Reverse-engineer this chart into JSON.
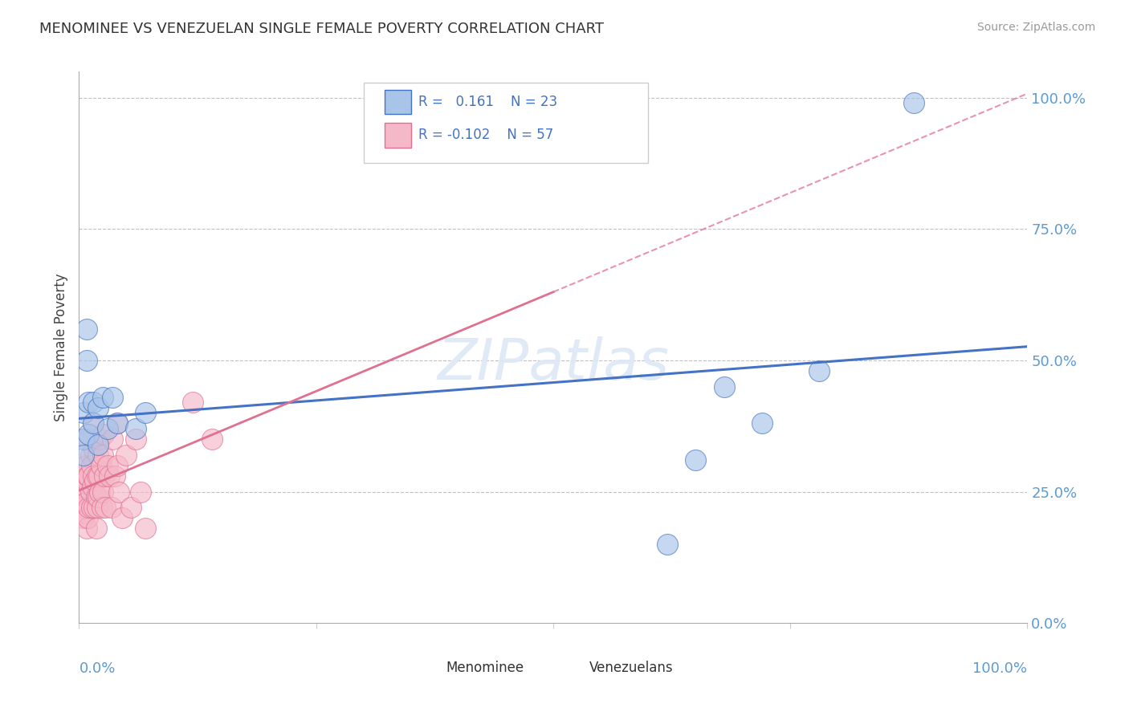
{
  "title": "MENOMINEE VS VENEZUELAN SINGLE FEMALE POVERTY CORRELATION CHART",
  "source": "Source: ZipAtlas.com",
  "ylabel": "Single Female Poverty",
  "menominee_R": "0.161",
  "menominee_N": "23",
  "venezuelan_R": "-0.102",
  "venezuelan_N": "57",
  "menominee_color": "#a8c4e8",
  "venezuelan_color": "#f5b8c8",
  "menominee_line_color": "#4472c4",
  "venezuelan_line_color": "#e07090",
  "background_color": "#ffffff",
  "watermark_color": "#dde8f5",
  "ytick_labels": [
    "0.0%",
    "25.0%",
    "50.0%",
    "75.0%",
    "100.0%"
  ],
  "ytick_values": [
    0.0,
    0.25,
    0.5,
    0.75,
    1.0
  ],
  "menominee_x": [
    0.005,
    0.005,
    0.005,
    0.008,
    0.008,
    0.01,
    0.01,
    0.015,
    0.015,
    0.02,
    0.02,
    0.025,
    0.03,
    0.035,
    0.04,
    0.06,
    0.07,
    0.62,
    0.65,
    0.68,
    0.72,
    0.78,
    0.88
  ],
  "menominee_y": [
    0.4,
    0.35,
    0.32,
    0.56,
    0.5,
    0.42,
    0.36,
    0.42,
    0.38,
    0.41,
    0.34,
    0.43,
    0.37,
    0.43,
    0.38,
    0.37,
    0.4,
    0.15,
    0.31,
    0.45,
    0.38,
    0.48,
    0.99
  ],
  "venezuelan_x": [
    0.003,
    0.004,
    0.005,
    0.005,
    0.006,
    0.006,
    0.007,
    0.007,
    0.008,
    0.008,
    0.009,
    0.009,
    0.01,
    0.01,
    0.01,
    0.012,
    0.012,
    0.013,
    0.013,
    0.014,
    0.015,
    0.015,
    0.016,
    0.016,
    0.017,
    0.018,
    0.018,
    0.019,
    0.019,
    0.02,
    0.02,
    0.021,
    0.022,
    0.022,
    0.023,
    0.024,
    0.025,
    0.025,
    0.026,
    0.027,
    0.028,
    0.03,
    0.032,
    0.034,
    0.035,
    0.038,
    0.04,
    0.04,
    0.042,
    0.045,
    0.05,
    0.055,
    0.06,
    0.065,
    0.07,
    0.12,
    0.14
  ],
  "venezuelan_y": [
    0.25,
    0.22,
    0.28,
    0.2,
    0.26,
    0.21,
    0.3,
    0.23,
    0.27,
    0.18,
    0.28,
    0.2,
    0.35,
    0.28,
    0.22,
    0.32,
    0.25,
    0.3,
    0.22,
    0.26,
    0.38,
    0.28,
    0.33,
    0.22,
    0.27,
    0.24,
    0.18,
    0.28,
    0.22,
    0.32,
    0.24,
    0.28,
    0.35,
    0.25,
    0.3,
    0.22,
    0.32,
    0.25,
    0.36,
    0.28,
    0.22,
    0.3,
    0.28,
    0.22,
    0.35,
    0.28,
    0.38,
    0.3,
    0.25,
    0.2,
    0.32,
    0.22,
    0.35,
    0.25,
    0.18,
    0.42,
    0.35
  ]
}
